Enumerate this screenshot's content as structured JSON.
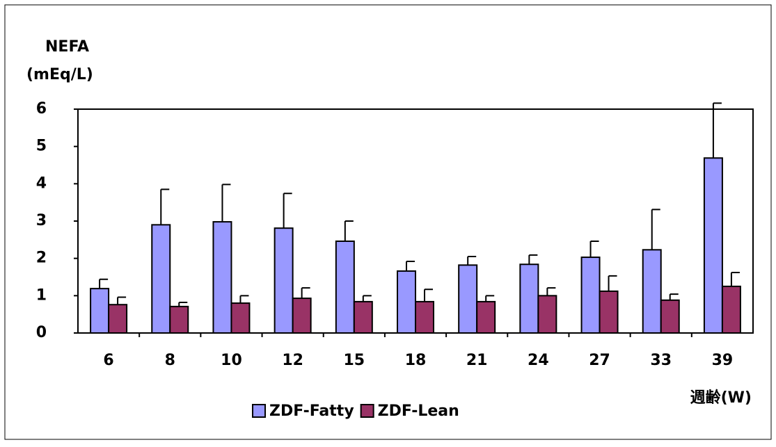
{
  "chart_data": {
    "type": "bar",
    "title": "NEFA",
    "y_label": "(mEq/L)",
    "x_label": "週齢(W)",
    "categories": [
      "6",
      "8",
      "10",
      "12",
      "15",
      "18",
      "21",
      "24",
      "27",
      "33",
      "39"
    ],
    "series": [
      {
        "name": "ZDF-Fatty",
        "color": "#9999ff",
        "values": [
          1.19,
          2.9,
          2.98,
          2.81,
          2.46,
          1.66,
          1.82,
          1.84,
          2.03,
          2.23,
          4.69
        ],
        "errors": [
          0.25,
          0.95,
          1.0,
          0.93,
          0.54,
          0.26,
          0.23,
          0.25,
          0.43,
          1.08,
          1.47
        ]
      },
      {
        "name": "ZDF-Lean",
        "color": "#993366",
        "values": [
          0.76,
          0.71,
          0.8,
          0.93,
          0.84,
          0.84,
          0.84,
          1.0,
          1.12,
          0.88,
          1.25
        ],
        "errors": [
          0.2,
          0.11,
          0.2,
          0.28,
          0.16,
          0.33,
          0.16,
          0.21,
          0.41,
          0.16,
          0.37
        ]
      }
    ],
    "ylim": [
      0,
      6
    ],
    "yticks": [
      0,
      1,
      2,
      3,
      4,
      5,
      6
    ],
    "grid": false
  }
}
